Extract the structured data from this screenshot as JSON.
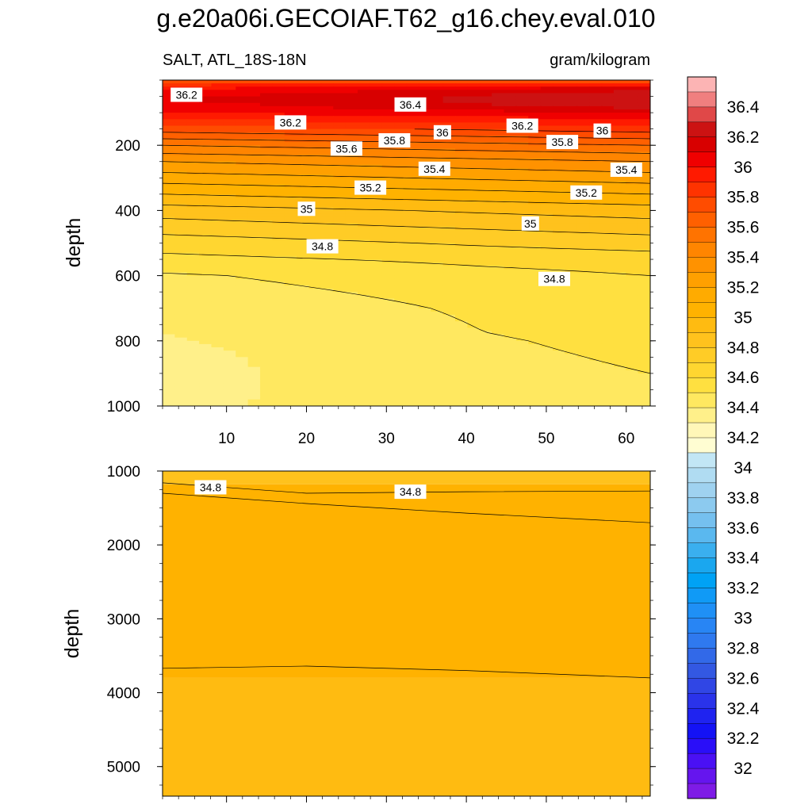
{
  "chart_data": {
    "type": "heatmap",
    "title": "g.e20a06i.GECOIAF.T62_g16.chey.eval.010",
    "panels": [
      {
        "id": "upper",
        "left_label": "SALT, ATL_18S-18N",
        "right_label": "gram/kilogram",
        "ylabel": "depth",
        "xlim": [
          2,
          63
        ],
        "ylim": [
          0,
          1000
        ],
        "y_inverted": true,
        "x_ticks": [
          10,
          20,
          30,
          40,
          50,
          60
        ],
        "y_ticks": [
          200,
          400,
          600,
          800,
          1000
        ],
        "depth_levels": [
          0,
          20,
          40,
          60,
          80,
          100,
          120,
          140,
          160,
          180,
          200,
          250,
          300,
          350,
          400,
          450,
          500,
          550,
          600,
          700,
          800,
          900,
          1000
        ],
        "salinity_left": [
          35.9,
          36.15,
          36.25,
          36.3,
          36.25,
          36.2,
          36.1,
          36.0,
          35.9,
          35.8,
          35.7,
          35.5,
          35.35,
          35.2,
          35.05,
          34.95,
          34.85,
          34.78,
          34.7,
          34.66,
          34.64,
          34.63,
          34.62
        ],
        "salinity_right": [
          35.9,
          36.3,
          36.45,
          36.5,
          36.45,
          36.3,
          36.2,
          36.1,
          36.0,
          35.9,
          35.8,
          35.6,
          35.45,
          35.3,
          35.15,
          35.05,
          34.95,
          34.85,
          34.8,
          34.75,
          34.72,
          34.7,
          34.69
        ],
        "contour_labels": [
          {
            "text": "36.2",
            "x": 5,
            "depth": 45
          },
          {
            "text": "36.4",
            "x": 33,
            "depth": 75
          },
          {
            "text": "36.2",
            "x": 18,
            "depth": 130
          },
          {
            "text": "36.2",
            "x": 47,
            "depth": 140
          },
          {
            "text": "36",
            "x": 37,
            "depth": 160
          },
          {
            "text": "36",
            "x": 57,
            "depth": 155
          },
          {
            "text": "35.8",
            "x": 31,
            "depth": 185
          },
          {
            "text": "35.8",
            "x": 52,
            "depth": 190
          },
          {
            "text": "35.6",
            "x": 25,
            "depth": 210
          },
          {
            "text": "35.4",
            "x": 36,
            "depth": 272
          },
          {
            "text": "35.4",
            "x": 60,
            "depth": 275
          },
          {
            "text": "35.2",
            "x": 28,
            "depth": 330
          },
          {
            "text": "35.2",
            "x": 55,
            "depth": 345
          },
          {
            "text": "35",
            "x": 20,
            "depth": 395
          },
          {
            "text": "35",
            "x": 48,
            "depth": 440
          },
          {
            "text": "34.8",
            "x": 22,
            "depth": 510
          },
          {
            "text": "34.8",
            "x": 51,
            "depth": 610
          }
        ]
      },
      {
        "id": "lower",
        "ylabel": "depth",
        "xlim": [
          2,
          63
        ],
        "ylim": [
          1000,
          5400
        ],
        "y_inverted": true,
        "y_ticks": [
          1000,
          2000,
          3000,
          4000,
          5000
        ],
        "contour_labels": [
          {
            "text": "34.8",
            "x": 8,
            "depth": 1220
          },
          {
            "text": "34.8",
            "x": 33,
            "depth": 1280
          }
        ]
      }
    ],
    "colorbar": {
      "labels": [
        "36.4",
        "36.2",
        "36",
        "35.8",
        "35.6",
        "35.4",
        "35.2",
        "35",
        "34.8",
        "34.6",
        "34.4",
        "34.2",
        "34",
        "33.8",
        "33.6",
        "33.4",
        "33.2",
        "33",
        "32.8",
        "32.6",
        "32.4",
        "32.2",
        "32"
      ],
      "colors": [
        "#fcb4b4",
        "#f07f7f",
        "#e04848",
        "#cc1212",
        "#d80000",
        "#f00000",
        "#ff1a00",
        "#ff3300",
        "#ff4c00",
        "#ff6000",
        "#ff7300",
        "#ff8500",
        "#ff9200",
        "#ffa000",
        "#ffab00",
        "#ffb200",
        "#ffbb11",
        "#ffc21d",
        "#ffcc26",
        "#ffd630",
        "#ffe040",
        "#ffe860",
        "#fff08a",
        "#fff7b8",
        "#fffdd2",
        "#c2e6f5",
        "#b0dcf2",
        "#9fd2f0",
        "#8ccaef",
        "#75c0ef",
        "#5ab8ef",
        "#3aafef",
        "#1aa7ef",
        "#00a2f5",
        "#109af6",
        "#1f90f6",
        "#2885f4",
        "#2f79ef",
        "#3269e8",
        "#3358e2",
        "#3046e5",
        "#2a33ea",
        "#1f23f0",
        "#1412f5",
        "#2a0ef8",
        "#4a10f4",
        "#6515ee",
        "#7e1be6"
      ]
    }
  }
}
